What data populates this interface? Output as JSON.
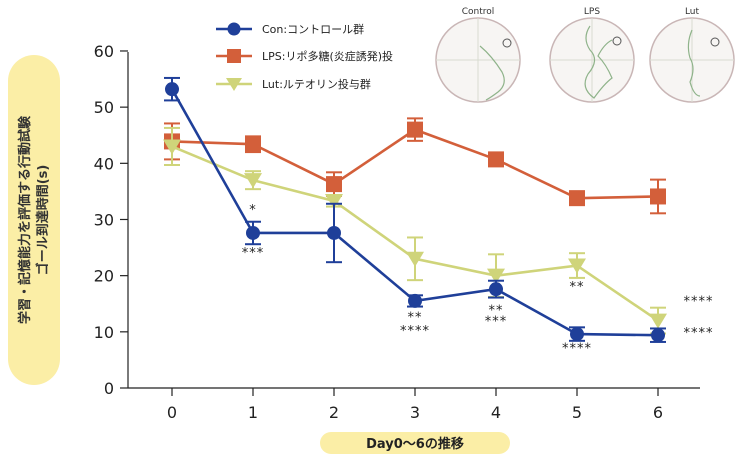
{
  "chart_data": {
    "type": "line",
    "x": [
      0,
      1,
      2,
      3,
      4,
      5,
      6
    ],
    "xlabel": "Day0〜6の推移",
    "ylabel_lines": [
      "学習・記憶能力を評価する行動試験",
      "ゴール到達時間(s)"
    ],
    "ylim": [
      0,
      60
    ],
    "yticks": [
      0,
      10,
      20,
      30,
      40,
      50,
      60
    ],
    "grid": false,
    "legend_position": "top",
    "series": [
      {
        "name": "Con:コントロール群",
        "color": "#1f3f99",
        "marker": "circle",
        "values": [
          53.2,
          27.6,
          27.6,
          15.5,
          17.6,
          9.6,
          9.4
        ],
        "errors": [
          2.0,
          2.0,
          5.2,
          1.0,
          1.5,
          1.2,
          1.2
        ]
      },
      {
        "name": "LPS:リポ多糖(炎症誘発)投",
        "color": "#d35f3a",
        "marker": "square",
        "values": [
          43.9,
          43.4,
          36.3,
          46.0,
          40.7,
          33.8,
          34.1
        ],
        "errors": [
          3.2,
          1.4,
          2.1,
          2.0,
          0.7,
          0.6,
          3.0
        ]
      },
      {
        "name": "Lut:ルテオリン投与群",
        "color": "#cfd47a",
        "marker": "triangle",
        "values": [
          43.0,
          37.0,
          33.3,
          23.0,
          20.0,
          21.8,
          12.0
        ],
        "errors": [
          3.3,
          1.6,
          1.0,
          3.8,
          3.8,
          2.2,
          2.3
        ]
      }
    ],
    "annotations": [
      {
        "x": 1,
        "y": 31,
        "text": "*"
      },
      {
        "x": 1,
        "y": 23.3,
        "text": "***"
      },
      {
        "x": 3,
        "y": 11.8,
        "text": "**"
      },
      {
        "x": 3,
        "y": 9.4,
        "text": "****"
      },
      {
        "x": 4,
        "y": 13.1,
        "text": "**"
      },
      {
        "x": 4,
        "y": 11.1,
        "text": "***"
      },
      {
        "x": 5,
        "y": 17.3,
        "text": "**"
      },
      {
        "x": 5,
        "y": 6.3,
        "text": "****"
      },
      {
        "x": 6.5,
        "y": 14.7,
        "text": "****"
      },
      {
        "x": 6.5,
        "y": 9.1,
        "text": "****"
      }
    ]
  },
  "insets": [
    {
      "title": "Control"
    },
    {
      "title": "LPS"
    },
    {
      "title": "Lut"
    }
  ]
}
